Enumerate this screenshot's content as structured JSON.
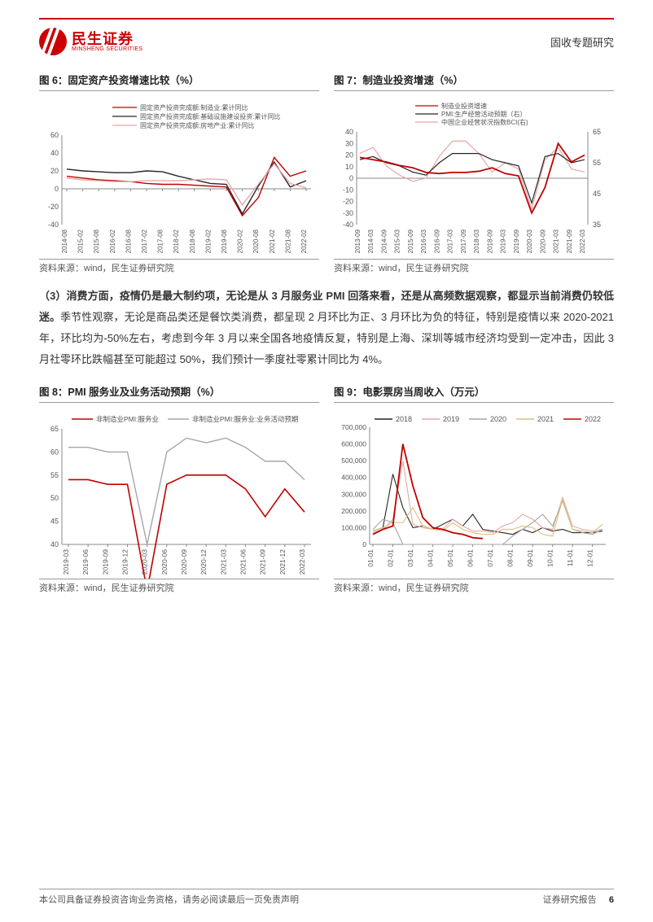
{
  "header": {
    "logo_cn": "民生证券",
    "logo_en": "MINSHENG SECURITIES",
    "doc_type": "固收专题研究"
  },
  "fig6": {
    "title": "图 6：固定资产投资增速比较（%）",
    "legend": [
      {
        "label": "固定资产投资完成额:制造业:累计同比",
        "color": "#c00000"
      },
      {
        "label": "固定资产投资完成额:基础设施建设投资:累计同比",
        "color": "#262626"
      },
      {
        "label": "固定资产投资完成额:房地产业:累计同比",
        "color": "#e6a8a8"
      }
    ],
    "yticks": [
      -40,
      -20,
      0,
      20,
      40,
      60
    ],
    "xticks": [
      "2014-08",
      "2015-02",
      "2015-08",
      "2016-02",
      "2016-08",
      "2017-02",
      "2017-08",
      "2018-02",
      "2018-08",
      "2019-02",
      "2019-08",
      "2020-02",
      "2020-08",
      "2021-02",
      "2021-08",
      "2022-02"
    ],
    "ymin": -40,
    "ymax": 60,
    "series": {
      "manuf": [
        14,
        12,
        10,
        9,
        8,
        6,
        5,
        5,
        4,
        3,
        2,
        -30,
        -10,
        35,
        14,
        20
      ],
      "infra": [
        22,
        20,
        19,
        18,
        18,
        20,
        19,
        14,
        10,
        6,
        5,
        -28,
        3,
        30,
        2,
        9
      ],
      "realest": [
        12,
        10,
        9,
        8,
        8,
        9,
        9,
        9,
        10,
        11,
        10,
        -18,
        5,
        28,
        6,
        1
      ]
    },
    "source": "资料来源：wind，民生证券研究院"
  },
  "fig7": {
    "title": "图 7：制造业投资增速（%）",
    "legend": [
      {
        "label": "制造业投资增速",
        "color": "#c00000"
      },
      {
        "label": "PMI:生产经营活动预期（右）",
        "color": "#262626"
      },
      {
        "label": "中国企业经营状况指数BCI(右)",
        "color": "#e6a8a8"
      }
    ],
    "yL": {
      "min": -40,
      "max": 40,
      "ticks": [
        -40,
        -30,
        -20,
        -10,
        0,
        10,
        20,
        30,
        40
      ]
    },
    "yR": {
      "min": 35,
      "max": 65,
      "ticks": [
        35,
        45,
        55,
        65
      ]
    },
    "xticks": [
      "2013-09",
      "2014-03",
      "2014-09",
      "2015-03",
      "2015-09",
      "2016-03",
      "2016-09",
      "2017-03",
      "2017-09",
      "2018-03",
      "2018-09",
      "2019-03",
      "2019-09",
      "2020-03",
      "2020-09",
      "2021-03",
      "2021-09",
      "2022-03"
    ],
    "series": {
      "invest": [
        18,
        16,
        14,
        11,
        9,
        5,
        4,
        5,
        5,
        6,
        9,
        4,
        2,
        -30,
        -8,
        30,
        14,
        20
      ],
      "pmi": [
        56,
        57,
        55,
        54,
        52,
        51,
        55,
        58,
        58,
        58,
        56,
        55,
        54,
        42,
        57,
        58,
        55,
        56
      ],
      "bci": [
        58,
        60,
        54,
        51,
        49,
        50,
        57,
        62,
        62,
        58,
        52,
        55,
        53,
        40,
        56,
        60,
        53,
        52
      ]
    },
    "source": "资料来源：wind，民生证券研究院"
  },
  "paragraph": {
    "bold_lead": "（3）消费方面，疫情仍是最大制约项，无论是从 3 月服务业 PMI 回落来看，还是从高频数据观察，都显示当前消费仍较低迷。",
    "rest": "季节性观察，无论是商品类还是餐饮类消费，都呈现 2 月环比为正、3 月环比为负的特征，特别是疫情以来 2020-2021 年，环比均为-50%左右，考虑到今年 3 月以来全国各地疫情反复，特别是上海、深圳等城市经济均受到一定冲击，因此 3 月社零环比跌幅甚至可能超过 50%，我们预计一季度社零累计同比为 4%。"
  },
  "fig8": {
    "title": "图 8：PMI 服务业及业务活动预期（%）",
    "legend": [
      {
        "label": "非制造业PMI:服务业",
        "color": "#c00000"
      },
      {
        "label": "非制造业PMI:服务业:业务活动预期",
        "color": "#a6a6a6"
      }
    ],
    "yticks": [
      40,
      45,
      50,
      55,
      60,
      65
    ],
    "ymin": 40,
    "ymax": 65,
    "xticks": [
      "2019-03",
      "2019-06",
      "2019-09",
      "2019-12",
      "2020-03",
      "2020-06",
      "2020-09",
      "2020-12",
      "2021-03",
      "2021-06",
      "2021-09",
      "2021-12",
      "2022-03"
    ],
    "series": {
      "svc": [
        54,
        54,
        53,
        53,
        30,
        53,
        55,
        55,
        55,
        52,
        46,
        52,
        47
      ],
      "expect": [
        61,
        61,
        60,
        60,
        40,
        60,
        63,
        62,
        63,
        61,
        58,
        58,
        54
      ]
    },
    "source": "资料来源：wind，民生证券研究院"
  },
  "fig9": {
    "title": "图 9：电影票房当周收入（万元）",
    "legend": [
      {
        "label": "2018",
        "color": "#262626"
      },
      {
        "label": "2019",
        "color": "#e6a8a8"
      },
      {
        "label": "2020",
        "color": "#a6a6a6"
      },
      {
        "label": "2021",
        "color": "#d9c27a"
      },
      {
        "label": "2022",
        "color": "#c00000"
      }
    ],
    "yticks": [
      0,
      100000,
      200000,
      300000,
      400000,
      500000,
      600000,
      700000
    ],
    "ymin": 0,
    "ymax": 700000,
    "xticks": [
      "01-01",
      "02-01",
      "03-01",
      "04-01",
      "05-01",
      "06-01",
      "07-01",
      "08-01",
      "09-01",
      "10-01",
      "11-01",
      "12-01"
    ],
    "series": {
      "2018": [
        80000,
        100000,
        420000,
        220000,
        100000,
        110000,
        90000,
        120000,
        150000,
        110000,
        180000,
        90000,
        80000,
        70000,
        60000,
        90000,
        70000,
        100000,
        80000,
        90000,
        70000,
        70000,
        70000,
        80000
      ],
      "2019": [
        70000,
        90000,
        150000,
        500000,
        120000,
        100000,
        90000,
        90000,
        150000,
        110000,
        80000,
        80000,
        70000,
        110000,
        130000,
        180000,
        150000,
        100000,
        90000,
        280000,
        110000,
        90000,
        80000,
        90000
      ],
      "2020": [
        90000,
        150000,
        130000,
        0,
        0,
        0,
        0,
        0,
        0,
        0,
        0,
        0,
        0,
        0,
        50000,
        90000,
        130000,
        180000,
        110000,
        260000,
        90000,
        70000,
        60000,
        90000
      ],
      "2021": [
        80000,
        100000,
        130000,
        130000,
        220000,
        110000,
        90000,
        80000,
        130000,
        90000,
        70000,
        60000,
        60000,
        90000,
        90000,
        110000,
        100000,
        60000,
        50000,
        270000,
        90000,
        80000,
        70000,
        120000
      ],
      "2022": [
        60000,
        90000,
        110000,
        600000,
        350000,
        160000,
        100000,
        90000,
        70000,
        60000,
        40000,
        35000
      ]
    },
    "source": "资料来源：wind，民生证券研究院"
  },
  "footer": {
    "left": "本公司具备证券投资咨询业务资格，请务必阅读最后一页免责声明",
    "right_label": "证券研究报告",
    "page": "6"
  },
  "colors": {
    "red": "#c00000",
    "black": "#262626",
    "pink": "#e6a8a8",
    "gray": "#a6a6a6",
    "gold": "#d9c27a",
    "axis": "#808080"
  }
}
